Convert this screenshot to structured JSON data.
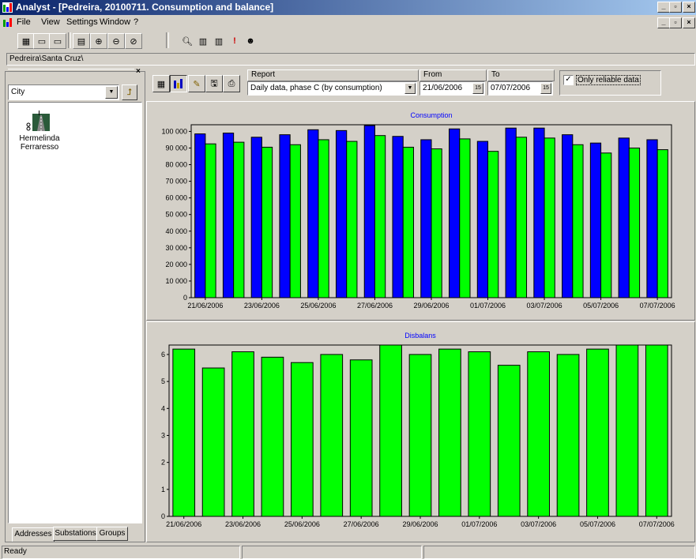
{
  "window": {
    "title": "Analyst - [Pedreira, 20100711. Consumption and balance]"
  },
  "menu": [
    "File",
    "View",
    "Settings",
    "Window",
    "?"
  ],
  "path": "Pedreira\\Santa Cruz\\",
  "left": {
    "combo_value": "City",
    "address_name": [
      "Hermelinda",
      "Ferraresso"
    ],
    "tabs": [
      "Addresses",
      "Substations",
      "Groups"
    ]
  },
  "report": {
    "report_label": "Report",
    "report_value": "Daily data, phase C (by consumption)",
    "from_label": "From",
    "from_value": "21/06/2006",
    "to_label": "To",
    "to_value": "07/07/2006",
    "reliable_label": "Only reliable data",
    "reliable_checked": true
  },
  "status": {
    "text": "Ready"
  },
  "colors": {
    "blue": "#0000ff",
    "green": "#00ff00"
  },
  "chart_data": [
    {
      "type": "bar",
      "title": "Consumption",
      "categories": [
        "21/06/2006",
        "22/06/2006",
        "23/06/2006",
        "24/06/2006",
        "25/06/2006",
        "26/06/2006",
        "27/06/2006",
        "28/06/2006",
        "29/06/2006",
        "30/06/2006",
        "01/07/2006",
        "02/07/2006",
        "03/07/2006",
        "04/07/2006",
        "05/07/2006",
        "06/07/2006",
        "07/07/2006"
      ],
      "tick_labels": [
        "21/06/2006",
        "23/06/2006",
        "25/06/2006",
        "27/06/2006",
        "29/06/2006",
        "01/07/2006",
        "03/07/2006",
        "05/07/2006",
        "07/07/2006"
      ],
      "series": [
        {
          "color": "#0000ff",
          "values": [
            98500,
            99000,
            96500,
            98000,
            101000,
            100500,
            103500,
            97000,
            95000,
            101500,
            94000,
            102000,
            102000,
            98000,
            93000,
            96000,
            95000
          ]
        },
        {
          "color": "#00ff00",
          "values": [
            92500,
            93500,
            90500,
            92000,
            95000,
            94000,
            97500,
            90500,
            89500,
            95500,
            88000,
            96500,
            96000,
            92000,
            87000,
            90000,
            89000
          ]
        }
      ],
      "yticks": [
        "0",
        "10 000",
        "20 000",
        "30 000",
        "40 000",
        "50 000",
        "60 000",
        "70 000",
        "80 000",
        "90 000",
        "100 000"
      ],
      "ylim": [
        0,
        104000
      ]
    },
    {
      "type": "bar",
      "title": "Disbalans",
      "categories": [
        "21/06/2006",
        "22/06/2006",
        "23/06/2006",
        "24/06/2006",
        "25/06/2006",
        "26/06/2006",
        "27/06/2006",
        "28/06/2006",
        "29/06/2006",
        "30/06/2006",
        "01/07/2006",
        "02/07/2006",
        "03/07/2006",
        "04/07/2006",
        "05/07/2006",
        "06/07/2006",
        "07/07/2006"
      ],
      "tick_labels": [
        "21/06/2006",
        "23/06/2006",
        "25/06/2006",
        "27/06/2006",
        "29/06/2006",
        "01/07/2006",
        "03/07/2006",
        "05/07/2006",
        "07/07/2006"
      ],
      "series": [
        {
          "color": "#00ff00",
          "values": [
            6.2,
            5.5,
            6.1,
            5.9,
            5.7,
            6.0,
            5.8,
            6.4,
            6.0,
            6.2,
            6.1,
            5.6,
            6.1,
            6.0,
            6.2,
            6.4,
            6.4
          ]
        }
      ],
      "yticks": [
        "0",
        "1",
        "2",
        "3",
        "4",
        "5",
        "6"
      ],
      "ylim": [
        0,
        6.35
      ]
    }
  ]
}
